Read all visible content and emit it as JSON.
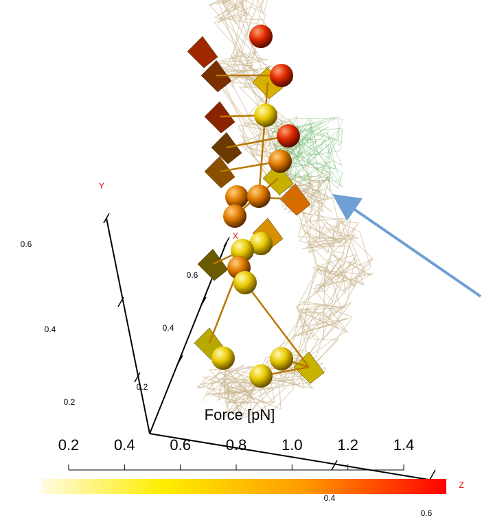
{
  "axes": {
    "y": {
      "label": "Y",
      "ticks": [
        "0.2",
        "0.4",
        "0.6"
      ]
    },
    "x": {
      "label": "X",
      "ticks": [
        "0.2",
        "0.4",
        "0.6"
      ]
    },
    "z": {
      "label": "Z",
      "ticks": [
        "0.4",
        "0.6"
      ]
    }
  },
  "colorbar": {
    "title": "Force [pN]",
    "ticks": [
      "0.2",
      "0.4",
      "0.6",
      "0.8",
      "1.0",
      "1.2",
      "1.4"
    ]
  }
}
